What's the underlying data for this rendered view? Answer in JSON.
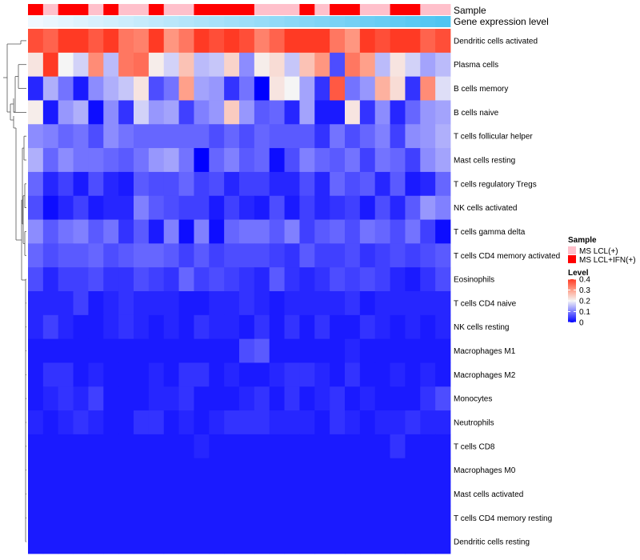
{
  "chart_data": {
    "type": "heatmap",
    "annotation_tracks": [
      "Sample",
      "Gene expression level"
    ],
    "sample_groups": [
      "MS LCL(+)",
      "MS LCL+IFN(+)"
    ],
    "sample_group_colors": [
      "#ffc0cb",
      "#ff0000"
    ],
    "sample_assignment": [
      1,
      0,
      1,
      1,
      0,
      1,
      0,
      0,
      1,
      0,
      0,
      1,
      1,
      1,
      1,
      0,
      0,
      0,
      1,
      0,
      1,
      1,
      0,
      0,
      1,
      1,
      0,
      0
    ],
    "gene_expression_level_ramp": [
      "#f0f8ff",
      "#4fc5f1"
    ],
    "rows": [
      "Dendritic cells activated",
      "Plasma cells",
      "B cells memory",
      "B cells naive",
      "T cells follicular helper",
      "Mast cells resting",
      "T cells regulatory  Tregs",
      "NK cells activated",
      "T cells gamma delta",
      "T cells CD4 memory activated",
      "Eosinophils",
      "T cells CD4 naive",
      "NK cells resting",
      "Macrophages M1",
      "Macrophages M2",
      "Monocytes",
      "Neutrophils",
      "T cells CD8",
      "Macrophages M0",
      "Mast cells activated",
      "T cells CD4 memory resting",
      "Dendritic cells resting"
    ],
    "values": [
      [
        0.38,
        0.36,
        0.4,
        0.4,
        0.37,
        0.4,
        0.34,
        0.33,
        0.4,
        0.31,
        0.34,
        0.4,
        0.38,
        0.4,
        0.38,
        0.33,
        0.36,
        0.4,
        0.4,
        0.4,
        0.34,
        0.31,
        0.4,
        0.38,
        0.4,
        0.4,
        0.36,
        0.38
      ],
      [
        0.22,
        0.4,
        0.2,
        0.17,
        0.32,
        0.15,
        0.34,
        0.35,
        0.21,
        0.17,
        0.26,
        0.15,
        0.16,
        0.24,
        0.11,
        0.21,
        0.23,
        0.16,
        0.26,
        0.31,
        0.06,
        0.34,
        0.3,
        0.15,
        0.22,
        0.17,
        0.13,
        0.15
      ],
      [
        0.03,
        0.14,
        0.09,
        0.02,
        0.11,
        0.14,
        0.16,
        0.22,
        0.06,
        0.09,
        0.3,
        0.13,
        0.12,
        0.04,
        0.09,
        0.0,
        0.22,
        0.2,
        0.13,
        0.04,
        0.37,
        0.09,
        0.12,
        0.28,
        0.23,
        0.04,
        0.32,
        0.18
      ],
      [
        0.21,
        0.02,
        0.12,
        0.14,
        0.01,
        0.11,
        0.04,
        0.17,
        0.12,
        0.13,
        0.05,
        0.1,
        0.12,
        0.25,
        0.12,
        0.07,
        0.08,
        0.03,
        0.13,
        0.02,
        0.02,
        0.22,
        0.04,
        0.11,
        0.03,
        0.08,
        0.12,
        0.13
      ],
      [
        0.11,
        0.1,
        0.08,
        0.09,
        0.06,
        0.11,
        0.09,
        0.08,
        0.08,
        0.08,
        0.08,
        0.08,
        0.06,
        0.08,
        0.06,
        0.08,
        0.07,
        0.07,
        0.07,
        0.04,
        0.09,
        0.06,
        0.08,
        0.1,
        0.05,
        0.11,
        0.12,
        0.14
      ],
      [
        0.14,
        0.08,
        0.11,
        0.09,
        0.09,
        0.08,
        0.07,
        0.09,
        0.12,
        0.13,
        0.09,
        0.0,
        0.08,
        0.1,
        0.07,
        0.08,
        0.01,
        0.06,
        0.1,
        0.08,
        0.07,
        0.09,
        0.05,
        0.09,
        0.08,
        0.05,
        0.11,
        0.13
      ],
      [
        0.08,
        0.03,
        0.05,
        0.02,
        0.06,
        0.03,
        0.02,
        0.07,
        0.06,
        0.06,
        0.08,
        0.05,
        0.06,
        0.03,
        0.05,
        0.05,
        0.03,
        0.03,
        0.06,
        0.03,
        0.08,
        0.06,
        0.07,
        0.03,
        0.07,
        0.02,
        0.03,
        0.08
      ],
      [
        0.06,
        0.01,
        0.03,
        0.05,
        0.02,
        0.03,
        0.03,
        0.1,
        0.07,
        0.06,
        0.05,
        0.05,
        0.02,
        0.05,
        0.03,
        0.02,
        0.06,
        0.02,
        0.05,
        0.03,
        0.04,
        0.05,
        0.02,
        0.06,
        0.03,
        0.07,
        0.12,
        0.1
      ],
      [
        0.11,
        0.07,
        0.09,
        0.1,
        0.07,
        0.09,
        0.04,
        0.07,
        0.02,
        0.1,
        0.01,
        0.1,
        0.01,
        0.08,
        0.09,
        0.09,
        0.07,
        0.1,
        0.05,
        0.07,
        0.08,
        0.06,
        0.09,
        0.08,
        0.06,
        0.09,
        0.05,
        0.01
      ],
      [
        0.08,
        0.06,
        0.07,
        0.07,
        0.08,
        0.06,
        0.07,
        0.08,
        0.08,
        0.07,
        0.05,
        0.07,
        0.05,
        0.06,
        0.06,
        0.06,
        0.05,
        0.04,
        0.07,
        0.05,
        0.05,
        0.06,
        0.04,
        0.05,
        0.06,
        0.05,
        0.06,
        0.07
      ],
      [
        0.06,
        0.03,
        0.05,
        0.05,
        0.06,
        0.04,
        0.04,
        0.06,
        0.05,
        0.04,
        0.08,
        0.05,
        0.06,
        0.05,
        0.04,
        0.03,
        0.07,
        0.04,
        0.03,
        0.04,
        0.06,
        0.05,
        0.06,
        0.05,
        0.03,
        0.02,
        0.04,
        0.06
      ],
      [
        0.03,
        0.03,
        0.03,
        0.05,
        0.02,
        0.03,
        0.04,
        0.03,
        0.03,
        0.03,
        0.02,
        0.02,
        0.03,
        0.03,
        0.04,
        0.03,
        0.02,
        0.03,
        0.03,
        0.03,
        0.03,
        0.04,
        0.02,
        0.03,
        0.03,
        0.03,
        0.03,
        0.03
      ],
      [
        0.03,
        0.05,
        0.03,
        0.02,
        0.02,
        0.03,
        0.04,
        0.03,
        0.02,
        0.03,
        0.02,
        0.04,
        0.03,
        0.03,
        0.02,
        0.04,
        0.02,
        0.04,
        0.02,
        0.04,
        0.02,
        0.02,
        0.04,
        0.03,
        0.02,
        0.03,
        0.02,
        0.03
      ],
      [
        0.02,
        0.02,
        0.02,
        0.02,
        0.02,
        0.02,
        0.02,
        0.02,
        0.02,
        0.02,
        0.02,
        0.02,
        0.02,
        0.02,
        0.06,
        0.07,
        0.02,
        0.02,
        0.02,
        0.02,
        0.02,
        0.03,
        0.02,
        0.02,
        0.02,
        0.02,
        0.02,
        0.02
      ],
      [
        0.02,
        0.04,
        0.04,
        0.02,
        0.03,
        0.02,
        0.02,
        0.02,
        0.03,
        0.02,
        0.04,
        0.04,
        0.02,
        0.03,
        0.02,
        0.02,
        0.03,
        0.04,
        0.04,
        0.03,
        0.02,
        0.04,
        0.02,
        0.02,
        0.03,
        0.02,
        0.03,
        0.02
      ],
      [
        0.02,
        0.03,
        0.04,
        0.03,
        0.05,
        0.02,
        0.02,
        0.02,
        0.03,
        0.03,
        0.04,
        0.02,
        0.02,
        0.02,
        0.03,
        0.04,
        0.02,
        0.04,
        0.02,
        0.03,
        0.04,
        0.02,
        0.03,
        0.02,
        0.02,
        0.02,
        0.04,
        0.06
      ],
      [
        0.03,
        0.02,
        0.03,
        0.04,
        0.03,
        0.02,
        0.02,
        0.04,
        0.04,
        0.02,
        0.03,
        0.02,
        0.03,
        0.04,
        0.04,
        0.04,
        0.03,
        0.03,
        0.03,
        0.02,
        0.04,
        0.03,
        0.02,
        0.03,
        0.03,
        0.04,
        0.03,
        0.03
      ],
      [
        0.02,
        0.02,
        0.02,
        0.02,
        0.02,
        0.02,
        0.02,
        0.02,
        0.02,
        0.02,
        0.02,
        0.03,
        0.02,
        0.02,
        0.02,
        0.02,
        0.02,
        0.02,
        0.02,
        0.02,
        0.02,
        0.02,
        0.02,
        0.02,
        0.04,
        0.02,
        0.02,
        0.02
      ],
      [
        0.02,
        0.02,
        0.02,
        0.02,
        0.02,
        0.02,
        0.02,
        0.02,
        0.02,
        0.02,
        0.02,
        0.02,
        0.02,
        0.02,
        0.02,
        0.02,
        0.02,
        0.02,
        0.02,
        0.02,
        0.02,
        0.02,
        0.02,
        0.02,
        0.02,
        0.02,
        0.02,
        0.02
      ],
      [
        0.02,
        0.02,
        0.02,
        0.02,
        0.02,
        0.02,
        0.02,
        0.02,
        0.02,
        0.02,
        0.02,
        0.02,
        0.02,
        0.02,
        0.02,
        0.02,
        0.02,
        0.02,
        0.02,
        0.02,
        0.02,
        0.02,
        0.02,
        0.02,
        0.02,
        0.02,
        0.02,
        0.02
      ],
      [
        0.02,
        0.02,
        0.02,
        0.02,
        0.02,
        0.02,
        0.02,
        0.02,
        0.02,
        0.02,
        0.02,
        0.02,
        0.02,
        0.02,
        0.02,
        0.02,
        0.02,
        0.02,
        0.02,
        0.02,
        0.02,
        0.02,
        0.02,
        0.02,
        0.02,
        0.02,
        0.02,
        0.02
      ],
      [
        0.02,
        0.02,
        0.02,
        0.02,
        0.02,
        0.02,
        0.02,
        0.02,
        0.02,
        0.02,
        0.02,
        0.02,
        0.02,
        0.02,
        0.02,
        0.02,
        0.02,
        0.02,
        0.02,
        0.02,
        0.02,
        0.02,
        0.02,
        0.02,
        0.02,
        0.02,
        0.02,
        0.02
      ]
    ],
    "color_scale": {
      "domain": [
        0,
        0.1,
        0.2,
        0.3,
        0.4
      ],
      "colors": [
        "#0000ff",
        "#8080ff",
        "#f5f5f5",
        "#ffa08a",
        "#ff3a24"
      ]
    },
    "legend": {
      "sample_title": "Sample",
      "sample_entries": [
        "MS LCL(+)",
        "MS LCL+IFN(+)"
      ],
      "level_title": "Level",
      "level_ticks": [
        "0.4",
        "0.3",
        "0.2",
        "0.1",
        "0"
      ],
      "level_tick_values": [
        0.4,
        0.3,
        0.2,
        0.1,
        0
      ],
      "position": "right"
    },
    "row_dendrogram": "left"
  }
}
